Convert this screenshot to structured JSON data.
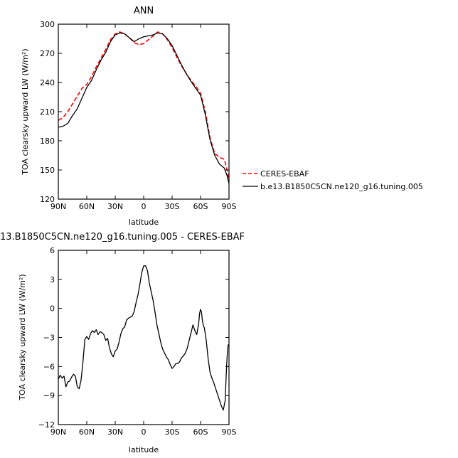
{
  "chart_data": [
    {
      "type": "line",
      "title": "ANN",
      "xlabel": "latitude",
      "ylabel": "TOA clearsky upward LW (W/m²)",
      "xlim": [
        90,
        -90
      ],
      "ylim": [
        120,
        300
      ],
      "xticks": [
        90,
        60,
        30,
        0,
        -30,
        -60,
        -90
      ],
      "xticklabels": [
        "90N",
        "60N",
        "30N",
        "0",
        "30S",
        "60S",
        "90S"
      ],
      "yticks": [
        120,
        150,
        180,
        210,
        240,
        270,
        300
      ],
      "yticklabels": [
        "120",
        "150",
        "180",
        "210",
        "240",
        "270",
        "300"
      ],
      "legend_placement": "right",
      "grid": false,
      "series": [
        {
          "name": "CERES-EBAF",
          "color": "#ff0000",
          "dash": "dashed",
          "x": [
            90,
            85,
            80,
            75,
            70,
            65,
            60,
            55,
            50,
            45,
            40,
            35,
            30,
            25,
            20,
            15,
            10,
            5,
            0,
            -5,
            -10,
            -15,
            -20,
            -25,
            -30,
            -35,
            -40,
            -45,
            -50,
            -55,
            -60,
            -65,
            -70,
            -75,
            -80,
            -85,
            -88,
            -90
          ],
          "y": [
            201,
            204,
            210,
            218,
            226,
            234,
            238,
            246,
            256,
            265,
            274,
            284,
            290,
            292,
            290,
            286,
            281,
            279,
            280,
            284,
            288,
            292,
            290,
            284,
            276,
            266,
            257,
            249,
            242,
            236,
            229,
            210,
            183,
            167,
            163,
            161,
            150,
            139
          ]
        },
        {
          "name": "b.e13.B1850C5CN.ne120_g16.tuning.005",
          "color": "#000000",
          "dash": "solid",
          "x": [
            90,
            85,
            80,
            75,
            70,
            65,
            60,
            55,
            50,
            45,
            40,
            35,
            30,
            25,
            20,
            15,
            10,
            5,
            0,
            -5,
            -10,
            -15,
            -20,
            -25,
            -30,
            -35,
            -40,
            -45,
            -50,
            -55,
            -60,
            -65,
            -70,
            -75,
            -80,
            -85,
            -88,
            -90
          ],
          "y": [
            194,
            195,
            198,
            206,
            213,
            224,
            235,
            242,
            253,
            263,
            271,
            282,
            289,
            291,
            290,
            286,
            282,
            285,
            287,
            288,
            289,
            291,
            290,
            285,
            278,
            268,
            258,
            249,
            241,
            234,
            227,
            207,
            181,
            165,
            156,
            152,
            144,
            136
          ]
        }
      ]
    },
    {
      "type": "line",
      "title": "13.B1850C5CN.ne120_g16.tuning.005 - CERES-EBAF",
      "xlabel": "latitude",
      "ylabel": "TOA clearsky upward LW (W/m²)",
      "xlim": [
        90,
        -90
      ],
      "ylim": [
        -12,
        6
      ],
      "xticks": [
        90,
        60,
        30,
        0,
        -30,
        -60,
        -90
      ],
      "xticklabels": [
        "90N",
        "60N",
        "30N",
        "0",
        "30S",
        "60S",
        "90S"
      ],
      "yticks": [
        -12,
        -9,
        -6,
        -3,
        0,
        3,
        6
      ],
      "yticklabels": [
        "−12",
        "−9",
        "−6",
        "−3",
        "0",
        "3",
        "6"
      ],
      "grid": false,
      "series": [
        {
          "name": "",
          "color": "#000000",
          "dash": "solid",
          "x": [
            90,
            88,
            86,
            84,
            82,
            80,
            78,
            76,
            74,
            72,
            70,
            68,
            66,
            64,
            62,
            60,
            58,
            56,
            54,
            52,
            50,
            48,
            46,
            44,
            42,
            40,
            38,
            36,
            34,
            32,
            30,
            28,
            26,
            24,
            22,
            20,
            18,
            16,
            14,
            12,
            10,
            8,
            6,
            4,
            2,
            0,
            -2,
            -4,
            -6,
            -8,
            -10,
            -12,
            -14,
            -16,
            -18,
            -20,
            -22,
            -24,
            -26,
            -28,
            -30,
            -32,
            -34,
            -36,
            -38,
            -40,
            -42,
            -44,
            -46,
            -48,
            -50,
            -52,
            -54,
            -56,
            -58,
            -59,
            -60,
            -61,
            -62,
            -63,
            -64,
            -66,
            -68,
            -70,
            -72,
            -74,
            -76,
            -78,
            -80,
            -82,
            -84,
            -86,
            -87,
            -88,
            -89,
            -90
          ],
          "y": [
            -7.3,
            -6.9,
            -7.2,
            -7.0,
            -8.1,
            -7.6,
            -7.5,
            -7.1,
            -6.8,
            -7.0,
            -8.1,
            -8.3,
            -7.4,
            -5.5,
            -3.2,
            -2.9,
            -3.2,
            -2.6,
            -2.3,
            -2.5,
            -2.2,
            -2.7,
            -2.4,
            -2.5,
            -2.7,
            -3.3,
            -3.1,
            -4.1,
            -4.7,
            -5.0,
            -4.4,
            -4.2,
            -3.5,
            -2.6,
            -2.1,
            -1.9,
            -1.2,
            -1.0,
            -0.9,
            -0.8,
            -0.3,
            0.6,
            1.4,
            2.5,
            3.7,
            4.4,
            4.4,
            3.9,
            2.6,
            1.7,
            0.8,
            -0.4,
            -1.7,
            -2.6,
            -3.5,
            -4.2,
            -4.6,
            -5.0,
            -5.3,
            -5.8,
            -6.2,
            -6.0,
            -5.7,
            -5.7,
            -5.5,
            -5.1,
            -4.9,
            -4.6,
            -4.1,
            -3.3,
            -2.5,
            -1.7,
            -2.3,
            -2.7,
            -1.6,
            -0.5,
            -0.1,
            -0.4,
            -1.3,
            -1.8,
            -2.0,
            -3.3,
            -5.2,
            -6.6,
            -7.2,
            -7.7,
            -8.3,
            -8.9,
            -9.5,
            -10.1,
            -10.5,
            -9.5,
            -7.0,
            -5.0,
            -3.8,
            -3.7
          ]
        }
      ]
    }
  ]
}
